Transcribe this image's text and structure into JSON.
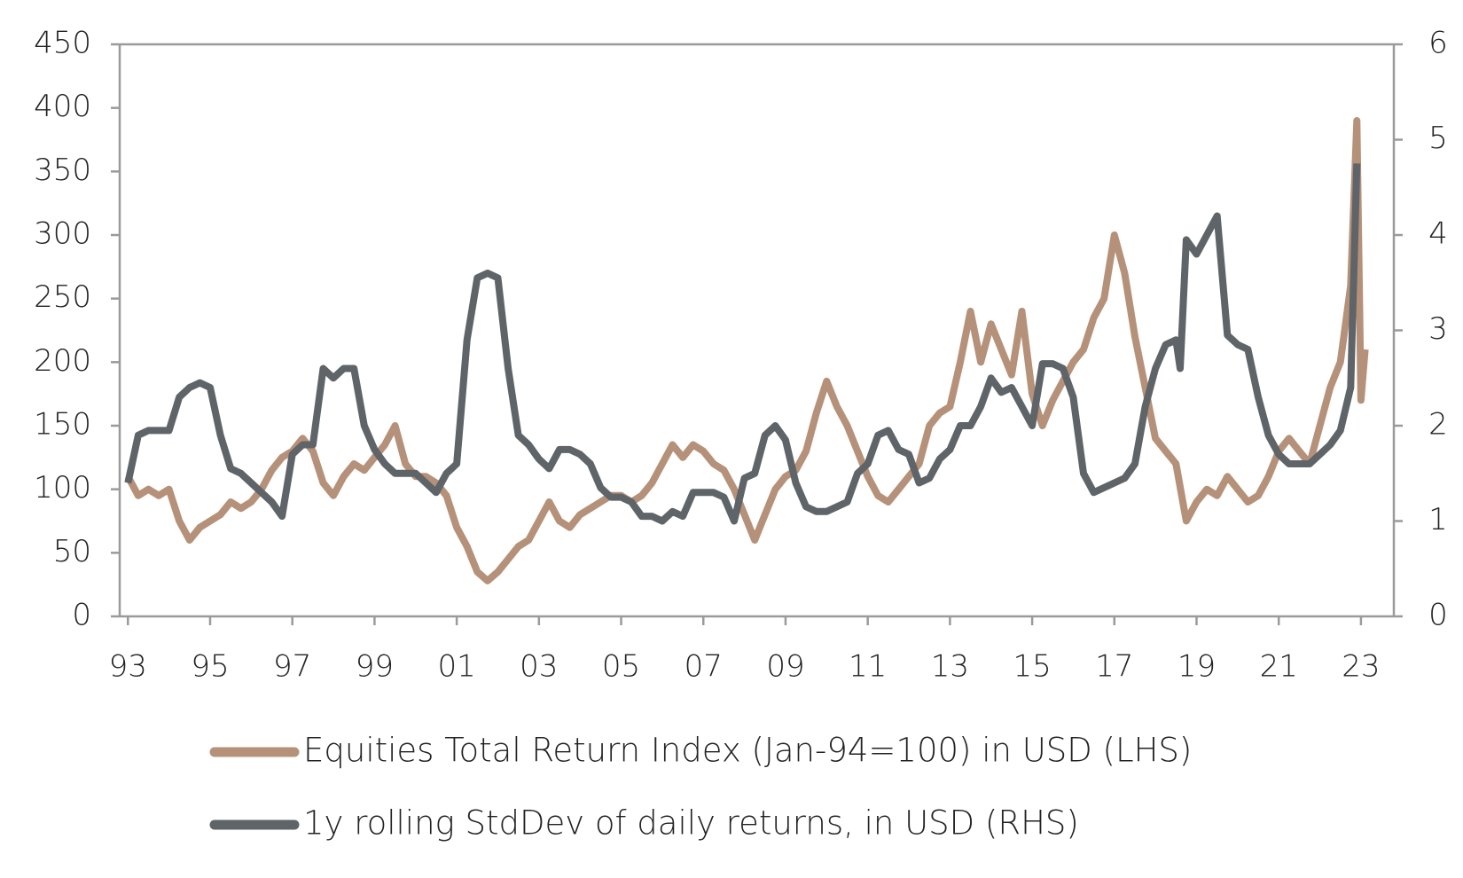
{
  "chart_data": {
    "type": "line",
    "xlim": [
      1992.8,
      2023.8
    ],
    "xticks": [
      {
        "value": 1993,
        "label": "93"
      },
      {
        "value": 1995,
        "label": "95"
      },
      {
        "value": 1997,
        "label": "97"
      },
      {
        "value": 1999,
        "label": "99"
      },
      {
        "value": 2001,
        "label": "01"
      },
      {
        "value": 2003,
        "label": "03"
      },
      {
        "value": 2005,
        "label": "05"
      },
      {
        "value": 2007,
        "label": "07"
      },
      {
        "value": 2009,
        "label": "09"
      },
      {
        "value": 2011,
        "label": "11"
      },
      {
        "value": 2013,
        "label": "13"
      },
      {
        "value": 2015,
        "label": "15"
      },
      {
        "value": 2017,
        "label": "17"
      },
      {
        "value": 2019,
        "label": "19"
      },
      {
        "value": 2021,
        "label": "21"
      },
      {
        "value": 2023,
        "label": "23"
      }
    ],
    "ylim": [
      0,
      450
    ],
    "yticks": [
      0,
      50,
      100,
      150,
      200,
      250,
      300,
      350,
      400,
      450
    ],
    "y2lim": [
      0,
      6
    ],
    "y2ticks": [
      0,
      1,
      2,
      3,
      4,
      5,
      6
    ],
    "legend": "bottom",
    "series": [
      {
        "name": "Equities Total Return Index (Jan-94=100) in USD (LHS)",
        "color": "#b5917a",
        "axis": "y",
        "x": [
          1993.0,
          1993.25,
          1993.5,
          1993.75,
          1994.0,
          1994.25,
          1994.5,
          1994.75,
          1995.0,
          1995.25,
          1995.5,
          1995.75,
          1996.0,
          1996.25,
          1996.5,
          1996.75,
          1997.0,
          1997.25,
          1997.5,
          1997.75,
          1998.0,
          1998.25,
          1998.5,
          1998.75,
          1999.0,
          1999.25,
          1999.5,
          1999.75,
          2000.0,
          2000.25,
          2000.5,
          2000.75,
          2001.0,
          2001.25,
          2001.5,
          2001.75,
          2002.0,
          2002.25,
          2002.5,
          2002.75,
          2003.0,
          2003.25,
          2003.5,
          2003.75,
          2004.0,
          2004.25,
          2004.5,
          2004.75,
          2005.0,
          2005.25,
          2005.5,
          2005.75,
          2006.0,
          2006.25,
          2006.5,
          2006.75,
          2007.0,
          2007.25,
          2007.5,
          2007.75,
          2008.0,
          2008.25,
          2008.5,
          2008.75,
          2009.0,
          2009.25,
          2009.5,
          2009.75,
          2010.0,
          2010.25,
          2010.5,
          2010.75,
          2011.0,
          2011.25,
          2011.5,
          2011.75,
          2012.0,
          2012.25,
          2012.5,
          2012.75,
          2013.0,
          2013.25,
          2013.5,
          2013.75,
          2014.0,
          2014.25,
          2014.5,
          2014.75,
          2015.0,
          2015.25,
          2015.5,
          2015.75,
          2016.0,
          2016.25,
          2016.5,
          2016.75,
          2017.0,
          2017.25,
          2017.5,
          2017.75,
          2018.0,
          2018.25,
          2018.5,
          2018.75,
          2019.0,
          2019.25,
          2019.5,
          2019.75,
          2020.0,
          2020.25,
          2020.5,
          2020.75,
          2021.0,
          2021.25,
          2021.5,
          2021.75,
          2022.0,
          2022.25,
          2022.5,
          2022.75,
          2022.9,
          2023.0,
          2023.1
        ],
        "values": [
          110,
          95,
          100,
          95,
          100,
          75,
          60,
          70,
          75,
          80,
          90,
          85,
          90,
          100,
          115,
          125,
          130,
          140,
          130,
          105,
          95,
          110,
          120,
          115,
          125,
          135,
          150,
          120,
          110,
          110,
          105,
          95,
          70,
          55,
          35,
          28,
          35,
          45,
          55,
          60,
          75,
          90,
          75,
          70,
          80,
          85,
          90,
          95,
          95,
          90,
          95,
          105,
          120,
          135,
          125,
          135,
          130,
          120,
          115,
          100,
          80,
          60,
          80,
          100,
          110,
          115,
          130,
          160,
          185,
          165,
          150,
          130,
          110,
          95,
          90,
          100,
          110,
          120,
          150,
          160,
          165,
          200,
          240,
          200,
          230,
          210,
          190,
          240,
          175,
          150,
          170,
          185,
          200,
          210,
          235,
          250,
          300,
          270,
          220,
          180,
          140,
          130,
          120,
          75,
          90,
          100,
          95,
          110,
          100,
          90,
          95,
          110,
          130,
          140,
          130,
          120,
          150,
          180,
          200,
          260,
          390,
          170,
          210
        ]
      },
      {
        "name": "1y rolling StdDev of daily returns, in USD (RHS)",
        "color": "#5f6468",
        "axis": "y2",
        "x": [
          1993.0,
          1993.25,
          1993.5,
          1993.75,
          1994.0,
          1994.25,
          1994.5,
          1994.75,
          1995.0,
          1995.25,
          1995.5,
          1995.75,
          1996.0,
          1996.25,
          1996.5,
          1996.75,
          1997.0,
          1997.25,
          1997.5,
          1997.75,
          1998.0,
          1998.25,
          1998.5,
          1998.75,
          1999.0,
          1999.25,
          1999.5,
          1999.75,
          2000.0,
          2000.25,
          2000.5,
          2000.75,
          2001.0,
          2001.25,
          2001.5,
          2001.75,
          2002.0,
          2002.25,
          2002.5,
          2002.75,
          2003.0,
          2003.25,
          2003.5,
          2003.75,
          2004.0,
          2004.25,
          2004.5,
          2004.75,
          2005.0,
          2005.25,
          2005.5,
          2005.75,
          2006.0,
          2006.25,
          2006.5,
          2006.75,
          2007.0,
          2007.25,
          2007.5,
          2007.75,
          2008.0,
          2008.25,
          2008.5,
          2008.75,
          2009.0,
          2009.25,
          2009.5,
          2009.75,
          2010.0,
          2010.25,
          2010.5,
          2010.75,
          2011.0,
          2011.25,
          2011.5,
          2011.75,
          2012.0,
          2012.25,
          2012.5,
          2012.75,
          2013.0,
          2013.25,
          2013.5,
          2013.75,
          2014.0,
          2014.25,
          2014.5,
          2014.75,
          2015.0,
          2015.25,
          2015.5,
          2015.75,
          2016.0,
          2016.25,
          2016.5,
          2016.75,
          2017.0,
          2017.25,
          2017.5,
          2017.75,
          2018.0,
          2018.25,
          2018.5,
          2018.6,
          2018.75,
          2019.0,
          2019.25,
          2019.5,
          2019.75,
          2020.0,
          2020.25,
          2020.5,
          2020.75,
          2021.0,
          2021.25,
          2021.5,
          2021.75,
          2022.0,
          2022.25,
          2022.5,
          2022.75,
          2022.9
        ],
        "values": [
          1.4,
          1.9,
          1.95,
          1.95,
          1.95,
          2.3,
          2.4,
          2.45,
          2.4,
          1.9,
          1.55,
          1.5,
          1.4,
          1.3,
          1.2,
          1.05,
          1.7,
          1.8,
          1.8,
          2.6,
          2.5,
          2.6,
          2.6,
          2.0,
          1.75,
          1.6,
          1.5,
          1.5,
          1.5,
          1.4,
          1.3,
          1.5,
          1.6,
          2.9,
          3.55,
          3.6,
          3.55,
          2.6,
          1.9,
          1.8,
          1.65,
          1.55,
          1.75,
          1.75,
          1.7,
          1.6,
          1.35,
          1.25,
          1.25,
          1.2,
          1.05,
          1.05,
          1.0,
          1.1,
          1.05,
          1.3,
          1.3,
          1.3,
          1.25,
          1.0,
          1.45,
          1.5,
          1.9,
          2.0,
          1.85,
          1.4,
          1.15,
          1.1,
          1.1,
          1.15,
          1.2,
          1.5,
          1.6,
          1.9,
          1.95,
          1.75,
          1.7,
          1.4,
          1.45,
          1.65,
          1.75,
          2.0,
          2.0,
          2.2,
          2.5,
          2.35,
          2.4,
          2.2,
          2.0,
          2.65,
          2.65,
          2.6,
          2.3,
          1.5,
          1.3,
          1.35,
          1.4,
          1.45,
          1.6,
          2.2,
          2.6,
          2.85,
          2.9,
          2.6,
          3.95,
          3.8,
          4.0,
          4.2,
          2.95,
          2.85,
          2.8,
          2.3,
          1.9,
          1.7,
          1.6,
          1.6,
          1.6,
          1.7,
          1.8,
          1.95,
          2.4,
          4.75
        ]
      }
    ]
  }
}
